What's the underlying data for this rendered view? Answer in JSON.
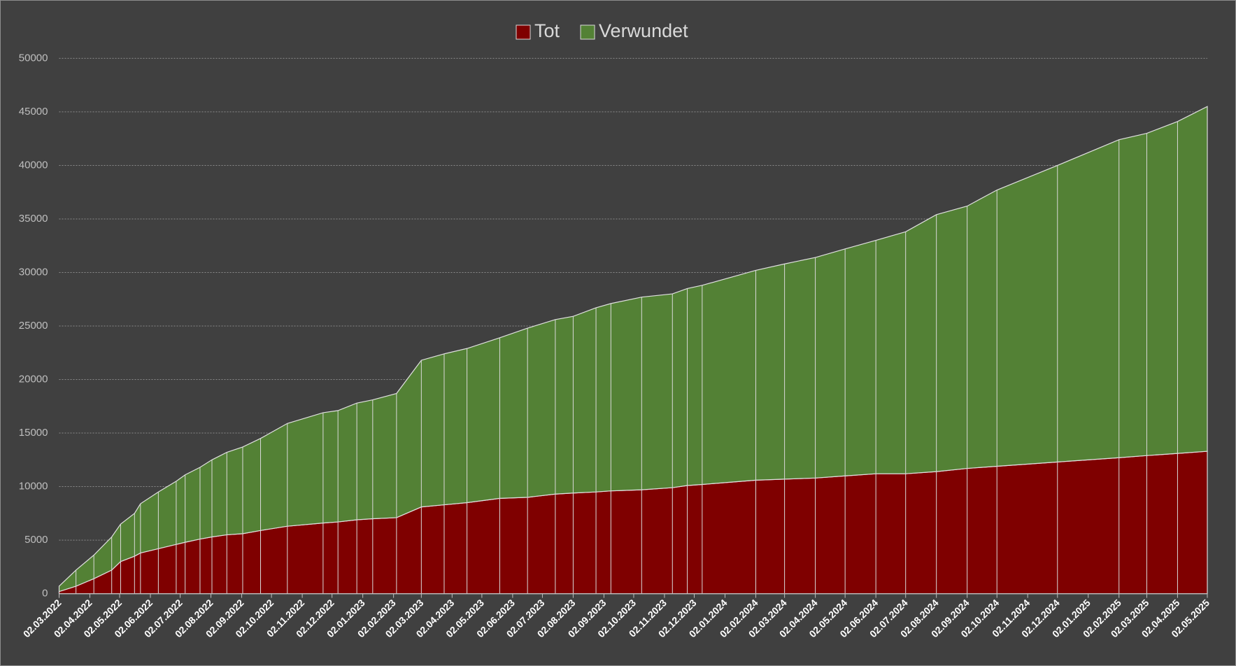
{
  "chart_data": {
    "type": "stacked_area",
    "x": [
      "02.03.2022",
      "19.03.2022",
      "06.04.2022",
      "24.04.2022",
      "03.05.2022",
      "17.05.2022",
      "23.05.2022",
      "10.06.2022",
      "28.06.2022",
      "07.07.2022",
      "22.07.2022",
      "03.08.2022",
      "18.08.2022",
      "03.09.2022",
      "21.09.2022",
      "18.10.2022",
      "23.11.2022",
      "08.12.2022",
      "27.12.2022",
      "12.01.2023",
      "05.02.2023",
      "02.03.2023",
      "25.03.2023",
      "17.04.2023",
      "20.05.2023",
      "17.06.2023",
      "15.07.2023",
      "02.08.2023",
      "25.08.2023",
      "09.09.2023",
      "10.10.2023",
      "10.11.2023",
      "25.11.2023",
      "10.12.2023",
      "02.02.2024",
      "02.03.2024",
      "02.04.2024",
      "02.05.2024",
      "02.06.2024",
      "02.07.2024",
      "02.08.2024",
      "02.09.2024",
      "02.10.2024",
      "02.12.2024",
      "02.02.2025",
      "02.03.2025",
      "02.04.2025",
      "02.05.2025"
    ],
    "series": [
      {
        "name": "Tot",
        "color": "#7f0000",
        "values": [
          200,
          700,
          1400,
          2200,
          3000,
          3500,
          3800,
          4200,
          4600,
          4800,
          5100,
          5300,
          5500,
          5600,
          5900,
          6300,
          6600,
          6700,
          6900,
          7000,
          7100,
          8100,
          8300,
          8500,
          8900,
          9000,
          9300,
          9400,
          9500,
          9600,
          9700,
          9900,
          10100,
          10200,
          10600,
          10700,
          10800,
          11000,
          11200,
          11200,
          11400,
          11700,
          11900,
          12300,
          12700,
          12900,
          13100,
          13300
        ]
      },
      {
        "name": "Verwundet",
        "color": "#538135",
        "values": [
          500,
          1500,
          2200,
          3100,
          3500,
          4000,
          4600,
          5300,
          5900,
          6300,
          6700,
          7200,
          7700,
          8100,
          8600,
          9600,
          10300,
          10400,
          10900,
          11100,
          11600,
          13700,
          14100,
          14400,
          15000,
          15800,
          16300,
          16500,
          17200,
          17500,
          18000,
          18100,
          18400,
          18600,
          19600,
          20100,
          20600,
          21200,
          21800,
          22600,
          24000,
          24500,
          25800,
          27700,
          29700,
          30100,
          31000,
          32200
        ]
      }
    ],
    "xticks": [
      "02.03.2022",
      "02.04.2022",
      "02.05.2022",
      "02.06.2022",
      "02.07.2022",
      "02.08.2022",
      "02.09.2022",
      "02.10.2022",
      "02.11.2022",
      "02.12.2022",
      "02.01.2023",
      "02.02.2023",
      "02.03.2023",
      "02.04.2023",
      "02.05.2023",
      "02.06.2023",
      "02.07.2023",
      "02.08.2023",
      "02.09.2023",
      "02.10.2023",
      "02.11.2023",
      "02.12.2023",
      "02.01.2024",
      "02.02.2024",
      "02.03.2024",
      "02.04.2024",
      "02.05.2024",
      "02.06.2024",
      "02.07.2024",
      "02.08.2024",
      "02.09.2024",
      "02.10.2024",
      "02.11.2024",
      "02.12.2024",
      "02.01.2025",
      "02.02.2025",
      "02.03.2025",
      "02.04.2025",
      "02.05.2025"
    ],
    "ylim": [
      0,
      50000
    ],
    "yticks": [
      0,
      5000,
      10000,
      15000,
      20000,
      25000,
      30000,
      35000,
      40000,
      45000,
      50000
    ],
    "grid": true,
    "legend": "top"
  }
}
